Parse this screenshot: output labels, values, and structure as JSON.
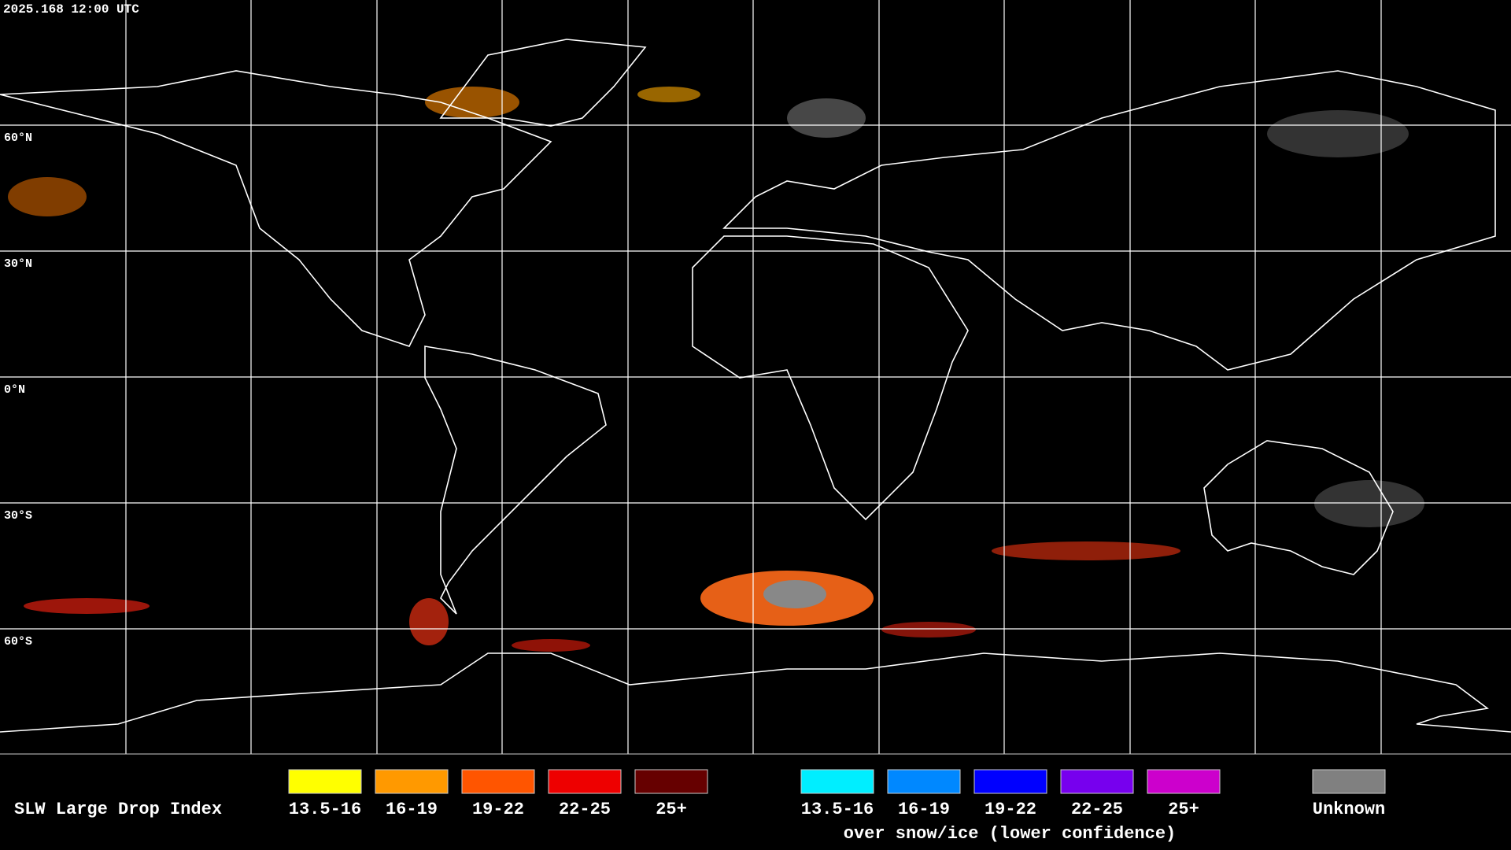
{
  "header": {
    "timestamp": "2025.168 12:00 UTC"
  },
  "map": {
    "lat_labels": [
      "60°N",
      "30°N",
      "0°N",
      "30°S",
      "60°S"
    ]
  },
  "legend": {
    "title": "SLW Large Drop Index",
    "groups": [
      {
        "items": [
          {
            "label": "13.5-16",
            "color": "#ffff00"
          },
          {
            "label": "16-19",
            "color": "#ff9900"
          },
          {
            "label": "19-22",
            "color": "#ff5500"
          },
          {
            "label": "22-25",
            "color": "#ee0000"
          },
          {
            "label": "25+",
            "color": "#660000"
          }
        ]
      },
      {
        "items": [
          {
            "label": "13.5-16",
            "color": "#00eeff"
          },
          {
            "label": "16-19",
            "color": "#0088ff"
          },
          {
            "label": "19-22",
            "color": "#0000ff"
          },
          {
            "label": "22-25",
            "color": "#7700ee"
          },
          {
            "label": "25+",
            "color": "#cc00cc"
          }
        ]
      }
    ],
    "snow_caption": "over snow/ice (lower confidence)",
    "unknown": {
      "label": "Unknown",
      "color": "#808080"
    }
  }
}
